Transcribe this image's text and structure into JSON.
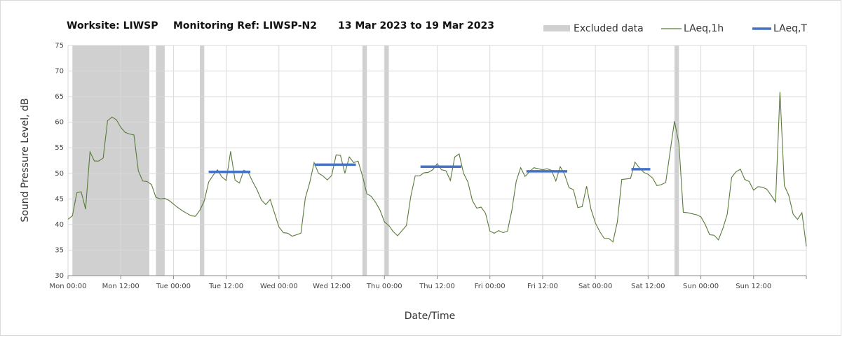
{
  "chart_data": {
    "type": "line",
    "title": "Worksite: LIWSP",
    "subtitle": "Monitoring Ref: LIWSP-N2",
    "date_range": "13 Mar 2023 to 19 Mar 2023",
    "x_label": "Date/Time",
    "y_label": "Sound Pressure Level, dB",
    "xlim": [
      0,
      168
    ],
    "ylim": [
      30,
      75
    ],
    "yticks": [
      30,
      35,
      40,
      45,
      50,
      55,
      60,
      65,
      70,
      75
    ],
    "xticks": [
      {
        "value": 0,
        "label": "Mon 00:00"
      },
      {
        "value": 12,
        "label": "Mon 12:00"
      },
      {
        "value": 24,
        "label": "Tue 00:00"
      },
      {
        "value": 36,
        "label": "Tue 12:00"
      },
      {
        "value": 48,
        "label": "Wed 00:00"
      },
      {
        "value": 60,
        "label": "Wed 12:00"
      },
      {
        "value": 72,
        "label": "Thu 00:00"
      },
      {
        "value": 84,
        "label": "Thu 12:00"
      },
      {
        "value": 96,
        "label": "Fri 00:00"
      },
      {
        "value": 108,
        "label": "Fri 12:00"
      },
      {
        "value": 120,
        "label": "Sat 00:00"
      },
      {
        "value": 132,
        "label": "Sat 12:00"
      },
      {
        "value": 144,
        "label": "Sun 00:00"
      },
      {
        "value": 156,
        "label": "Sun 12:00"
      }
    ],
    "grid": true,
    "excluded": {
      "name": "Excluded data",
      "color": "#d0d0d0",
      "ranges": [
        [
          1,
          18.5
        ],
        [
          20,
          22
        ],
        [
          30,
          31
        ],
        [
          67,
          68
        ],
        [
          72,
          73
        ],
        [
          138,
          139
        ]
      ]
    },
    "series": [
      {
        "name": "LAeq,1h",
        "color": "#5a7a3a",
        "x": [
          0,
          1,
          2,
          3,
          4,
          5,
          6,
          7,
          8,
          9,
          10,
          11,
          12,
          13,
          14,
          15,
          16,
          17,
          18,
          19,
          20,
          21,
          22,
          23,
          24,
          25,
          26,
          27,
          28,
          29,
          30,
          31,
          32,
          33,
          34,
          35,
          36,
          37,
          38,
          39,
          40,
          41,
          42,
          43,
          44,
          45,
          46,
          47,
          48,
          49,
          50,
          51,
          52,
          53,
          54,
          55,
          56,
          57,
          58,
          59,
          60,
          61,
          62,
          63,
          64,
          65,
          66,
          67,
          68,
          69,
          70,
          71,
          72,
          73,
          74,
          75,
          76,
          77,
          78,
          79,
          80,
          81,
          82,
          83,
          84,
          85,
          86,
          87,
          88,
          89,
          90,
          91,
          92,
          93,
          94,
          95,
          96,
          97,
          98,
          99,
          100,
          101,
          102,
          103,
          104,
          105,
          106,
          107,
          108,
          109,
          110,
          111,
          112,
          113,
          114,
          115,
          116,
          117,
          118,
          119,
          120,
          121,
          122,
          123,
          124,
          125,
          126,
          127,
          128,
          129,
          130,
          131,
          132,
          133,
          134,
          135,
          136,
          137,
          138,
          139,
          140,
          141,
          142,
          143,
          144,
          145,
          146,
          147,
          148,
          149,
          150,
          151,
          152,
          153,
          154,
          155,
          156,
          157,
          158,
          159,
          160,
          161,
          162,
          163,
          164,
          165,
          166,
          167,
          168
        ],
        "values": [
          41,
          41.7,
          46.2,
          46.4,
          43,
          54.2,
          52.4,
          52.4,
          53,
          60.3,
          61,
          60.5,
          59,
          58,
          57.7,
          57.5,
          50.5,
          48.5,
          48.4,
          47.8,
          45.3,
          45,
          45.1,
          44.7,
          44,
          43.3,
          42.7,
          42.2,
          41.7,
          41.6,
          42.8,
          44.6,
          48.3,
          49.6,
          50.7,
          49.3,
          48.6,
          54.3,
          48.7,
          48.1,
          50.6,
          50.2,
          48.4,
          46.8,
          44.8,
          43.9,
          44.9,
          42.2,
          39.5,
          38.4,
          38.3,
          37.7,
          38,
          38.3,
          45.2,
          48.2,
          52.1,
          50,
          49.5,
          48.7,
          49.6,
          53.6,
          53.5,
          50,
          53.2,
          52.1,
          52.4,
          49.5,
          46,
          45.5,
          44.3,
          42.8,
          40.5,
          39.8,
          38.6,
          37.8,
          38.8,
          39.8,
          45.5,
          49.5,
          49.5,
          50.1,
          50.2,
          50.7,
          51.9,
          50.7,
          50.5,
          48.6,
          53.2,
          53.8,
          50,
          48.3,
          44.7,
          43.2,
          43.4,
          42.2,
          38.7,
          38.3,
          38.8,
          38.4,
          38.7,
          42.8,
          48.5,
          51.1,
          49.4,
          50.3,
          51.1,
          50.9,
          50.7,
          50.9,
          50.6,
          48.5,
          51.3,
          49.8,
          47.2,
          46.8,
          43.3,
          43.5,
          47.5,
          43,
          40.3,
          38.6,
          37.3,
          37.3,
          36.6,
          40.5,
          48.8,
          48.9,
          49,
          52.2,
          51.1,
          50.2,
          49.8,
          49.1,
          47.6,
          47.8,
          48.2,
          54.2,
          60.2,
          55.9,
          42.4,
          42.3,
          42.1,
          41.9,
          41.5,
          40,
          38,
          37.9,
          37,
          39.2,
          42,
          49.2,
          50.3,
          50.8,
          48.8,
          48.4,
          46.7,
          47.4,
          47.3,
          46.9,
          45.7,
          44.4,
          65.9,
          47.6,
          45.7,
          42,
          41,
          42.3,
          35.7
        ]
      }
    ],
    "periods": {
      "name": "LAeq,T",
      "color": "#4472c4",
      "ranges": [
        [
          32,
          41.5
        ],
        [
          56.1,
          65.5
        ],
        [
          80.2,
          89.5
        ],
        [
          104.3,
          113.6
        ],
        [
          128.2,
          132.5
        ]
      ],
      "values": [
        50.3,
        51.7,
        51.3,
        50.4,
        50.8
      ]
    }
  }
}
